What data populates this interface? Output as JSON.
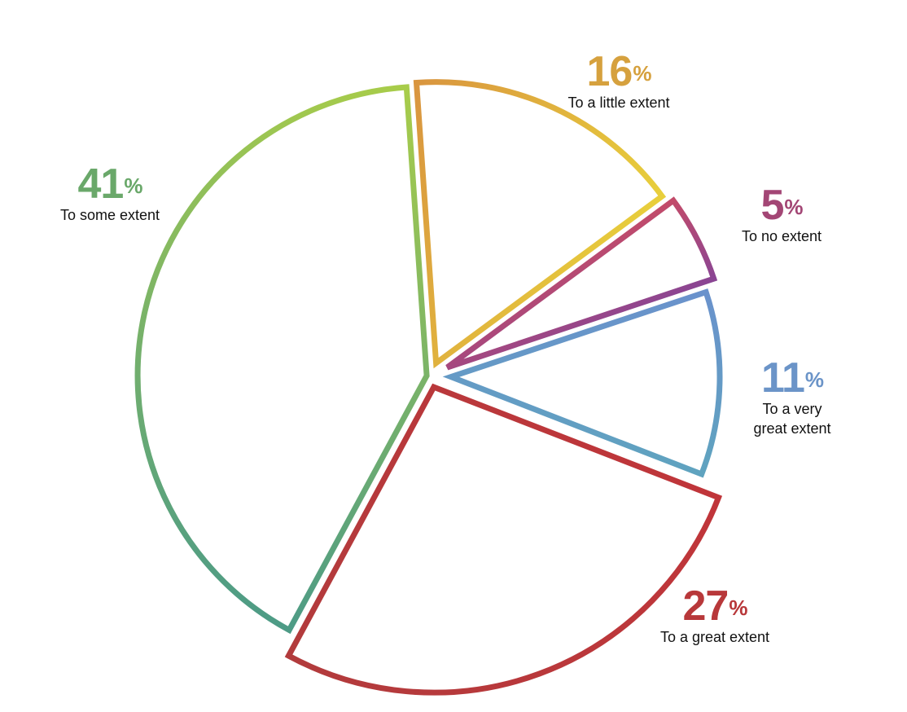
{
  "chart_data": {
    "type": "pie",
    "slices": [
      {
        "label": "To a little extent",
        "value": 16,
        "pct_text": "16",
        "color": "#d6a13e",
        "gradient": [
          "#d9953f",
          "#e8cf3c"
        ]
      },
      {
        "label": "To no extent",
        "value": 5,
        "pct_text": "5",
        "color": "#a34675",
        "gradient": [
          "#c24b6a",
          "#8a4593"
        ]
      },
      {
        "label": "To a very great extent",
        "label_lines": [
          "To a very",
          "great extent"
        ],
        "value": 11,
        "pct_text": "11",
        "color": "#6b94c8",
        "gradient": [
          "#6a92cc",
          "#5fa3bf"
        ]
      },
      {
        "label": "To a great extent",
        "value": 27,
        "pct_text": "27",
        "color": "#b8383a",
        "gradient": [
          "#c0353a",
          "#b23b3c"
        ]
      },
      {
        "label": "To some extent",
        "value": 41,
        "pct_text": "41",
        "color": "#6aa86a",
        "gradient": [
          "#4d9b86",
          "#a8cc4a"
        ]
      }
    ],
    "percent_symbol": "%"
  }
}
